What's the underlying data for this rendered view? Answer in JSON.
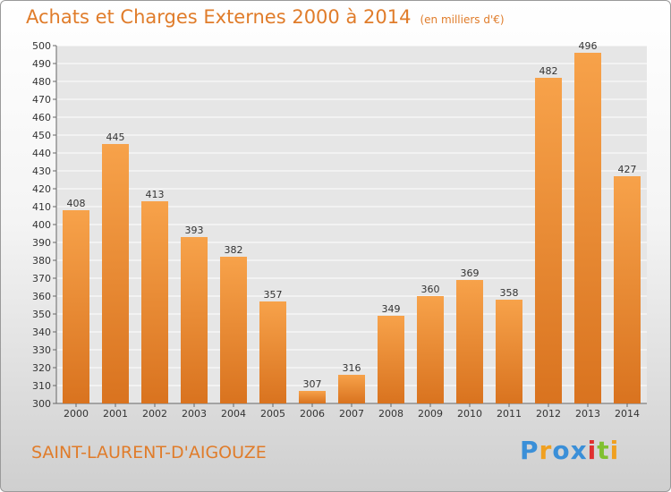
{
  "header": {
    "title": "Achats et Charges Externes 2000 à 2014",
    "subtitle": "(en milliers d'€)"
  },
  "footer": {
    "city": "SAINT-LAURENT-D'AIGOUZE",
    "logo_letters": [
      "P",
      "r",
      "o",
      "x",
      "i",
      "t",
      "i"
    ],
    "logo_colors": [
      "#3a8fd8",
      "#f0a020",
      "#3a8fd8",
      "#3a8fd8",
      "#e03030",
      "#80c030",
      "#f0a020"
    ]
  },
  "chart_data": {
    "type": "bar",
    "title": "Achats et Charges Externes 2000 à 2014",
    "subtitle": "(en milliers d'€)",
    "categories": [
      "2000",
      "2001",
      "2002",
      "2003",
      "2004",
      "2005",
      "2006",
      "2007",
      "2008",
      "2009",
      "2010",
      "2011",
      "2012",
      "2013",
      "2014"
    ],
    "values": [
      408,
      445,
      413,
      393,
      382,
      357,
      307,
      316,
      349,
      360,
      369,
      358,
      482,
      496,
      427
    ],
    "ylim": [
      300,
      500
    ],
    "ytick_step": 10,
    "grid": true,
    "bar_color_top": "#f7a24a",
    "bar_color_bottom": "#d9731f"
  }
}
